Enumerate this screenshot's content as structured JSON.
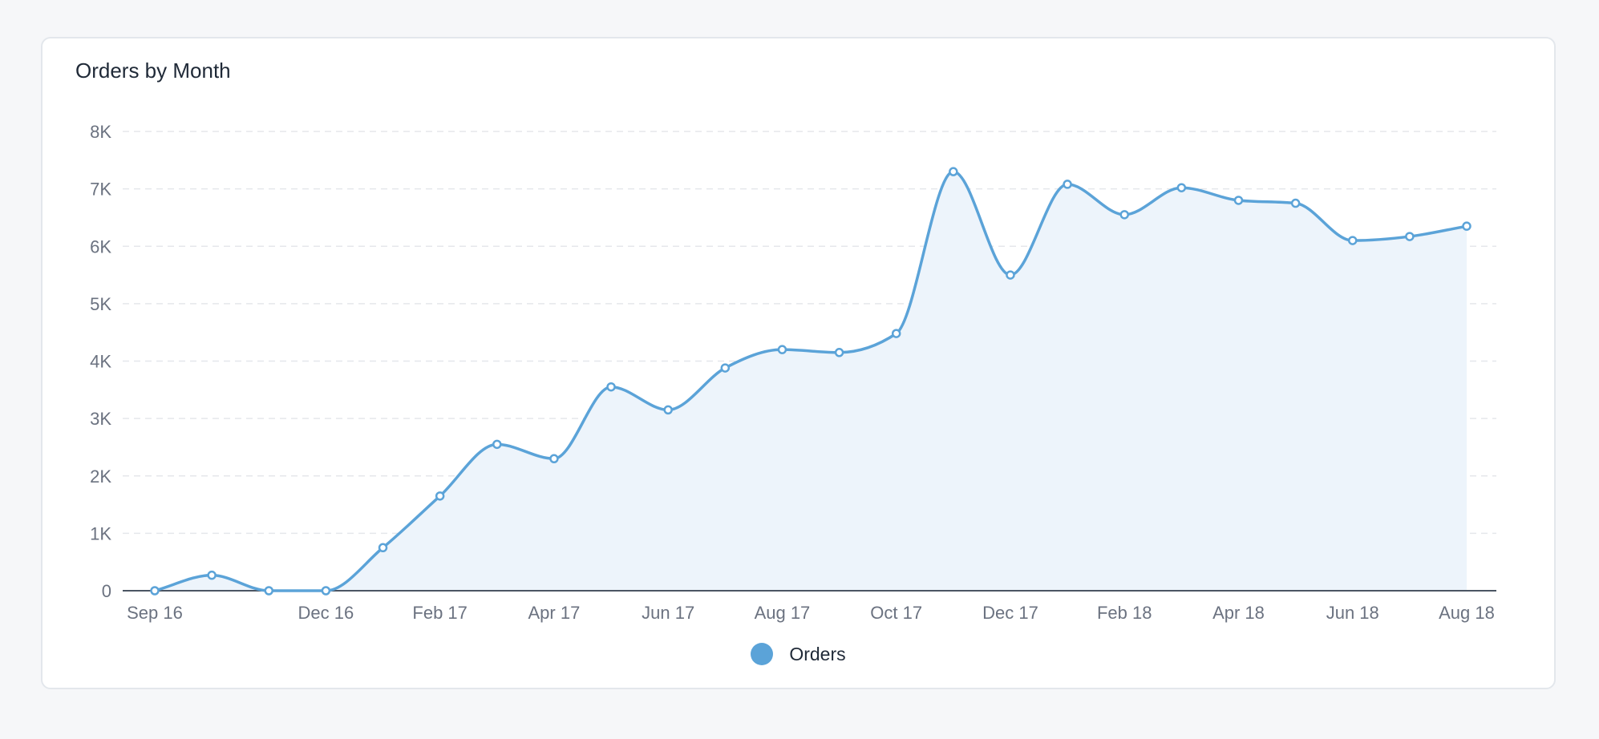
{
  "card": {
    "title": "Orders by Month"
  },
  "colors": {
    "line": "#5ba3d8",
    "fill": "#edf4fb",
    "grid": "#e5e7eb",
    "axis": "#4b5563",
    "point_fill": "#ffffff"
  },
  "chart_data": {
    "type": "area",
    "title": "Orders by Month",
    "xlabel": "",
    "ylabel": "",
    "x": [
      "Sep 16",
      "Oct 16",
      "Nov 16",
      "Dec 16",
      "Jan 17",
      "Feb 17",
      "Mar 17",
      "Apr 17",
      "May 17",
      "Jun 17",
      "Jul 17",
      "Aug 17",
      "Sep 17",
      "Oct 17",
      "Nov 17",
      "Dec 17",
      "Jan 18",
      "Feb 18",
      "Mar 18",
      "Apr 18",
      "May 18",
      "Jun 18",
      "Jul 18",
      "Aug 18"
    ],
    "x_tick_labels": [
      "Sep 16",
      "Dec 16",
      "Feb 17",
      "Apr 17",
      "Jun 17",
      "Aug 17",
      "Oct 17",
      "Dec 17",
      "Feb 18",
      "Apr 18",
      "Jun 18",
      "Aug 18"
    ],
    "x_tick_indices": [
      0,
      3,
      5,
      7,
      9,
      11,
      13,
      15,
      17,
      19,
      21,
      23
    ],
    "ylim": [
      0,
      8000
    ],
    "y_ticks": [
      0,
      1000,
      2000,
      3000,
      4000,
      5000,
      6000,
      7000,
      8000
    ],
    "y_tick_labels": [
      "0",
      "1K",
      "2K",
      "3K",
      "4K",
      "5K",
      "6K",
      "7K",
      "8K"
    ],
    "grid": true,
    "legend_position": "bottom-center",
    "series": [
      {
        "name": "Orders",
        "values": [
          0,
          270,
          0,
          0,
          750,
          1650,
          2550,
          2300,
          3550,
          3150,
          3880,
          4200,
          4150,
          4480,
          7300,
          5500,
          7080,
          6550,
          7020,
          6800,
          6750,
          6100,
          6170,
          6350
        ]
      }
    ]
  }
}
